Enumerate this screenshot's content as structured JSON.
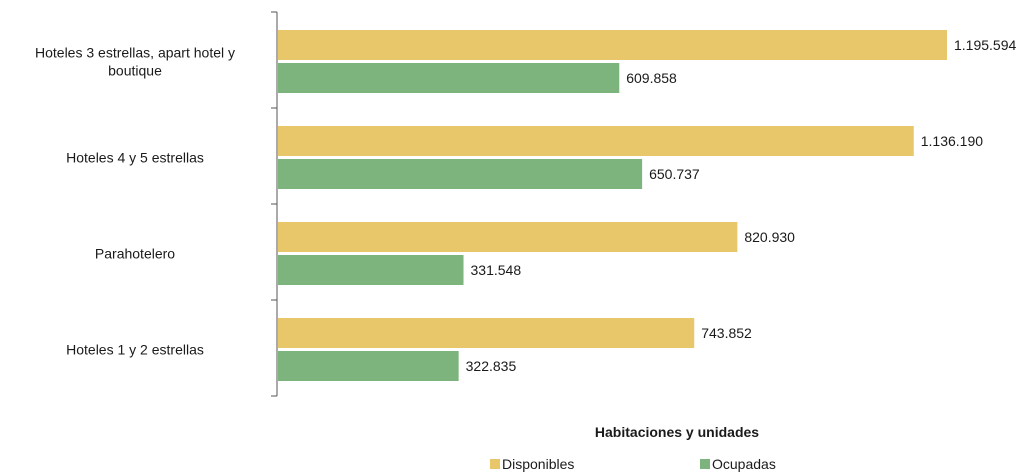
{
  "chart_data": {
    "type": "bar",
    "orientation": "horizontal",
    "categories": [
      "Hoteles 3 estrellas, apart hotel y boutique",
      "Hoteles 4 y 5 estrellas",
      "Parahotelero",
      "Hoteles 1 y 2 estrellas"
    ],
    "series": [
      {
        "name": "Disponibles",
        "color": "#e8c76a",
        "values": [
          1195594,
          1136190,
          820930,
          743852
        ],
        "labels": [
          "1.195.594",
          "1.136.190",
          "820.930",
          "743.852"
        ]
      },
      {
        "name": "Ocupadas",
        "color": "#7db37c",
        "values": [
          609858,
          650737,
          331548,
          322835
        ],
        "labels": [
          "609.858",
          "650.737",
          "331.548",
          "322.835"
        ]
      }
    ],
    "xlabel": "Habitaciones y unidades",
    "xlim": [
      0,
      1195594
    ],
    "grid": false,
    "legend": "bottom"
  }
}
